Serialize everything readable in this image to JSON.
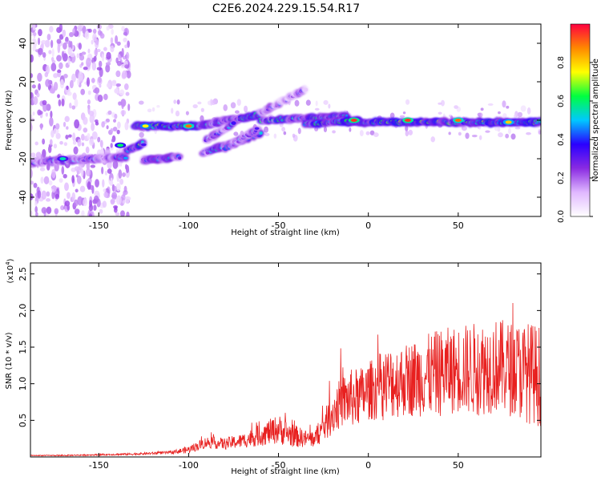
{
  "title": "C2E6.2024.229.15.54.R17",
  "chart_data": [
    {
      "type": "heatmap",
      "xlabel": "Height of straight line (km)",
      "ylabel": "Frequency (Hz)",
      "xlim": [
        -188,
        96
      ],
      "ylim": [
        -50,
        50
      ],
      "xticks": [
        -150,
        -100,
        -50,
        0,
        50
      ],
      "yticks": [
        -40,
        -20,
        0,
        20,
        40
      ],
      "colorbar": {
        "label": "Normalized spectral amplitude",
        "range": [
          0,
          1
        ],
        "ticks": [
          "0.0",
          "0.2",
          "0.4",
          "0.6",
          "0.8"
        ],
        "tick_values": [
          0,
          0.2,
          0.4,
          0.6,
          0.8
        ],
        "colors": [
          "#ffffff",
          "#e0b8ff",
          "#8a2be2",
          "#2a00ff",
          "#00c8ff",
          "#00ff40",
          "#ffff00",
          "#ff8800",
          "#ff0040"
        ]
      },
      "tracks": [
        {
          "x0": -188,
          "x1": -135,
          "y0": -22,
          "y1": -19,
          "amp": 0.35
        },
        {
          "x0": -135,
          "x1": -125,
          "y0": -16,
          "y1": -12,
          "amp": 0.5
        },
        {
          "x0": -125,
          "x1": -105,
          "y0": -21,
          "y1": -19,
          "amp": 0.4
        },
        {
          "x0": -130,
          "x1": -95,
          "y0": -3,
          "y1": -3,
          "amp": 0.55
        },
        {
          "x0": -95,
          "x1": -60,
          "y0": -3,
          "y1": 3,
          "amp": 0.45
        },
        {
          "x0": -92,
          "x1": -60,
          "y0": -17,
          "y1": -7,
          "amp": 0.4
        },
        {
          "x0": -90,
          "x1": -75,
          "y0": -10,
          "y1": -2,
          "amp": 0.35
        },
        {
          "x0": -80,
          "x1": -62,
          "y0": -15,
          "y1": -5,
          "amp": 0.35
        },
        {
          "x0": -60,
          "x1": -12,
          "y0": 0,
          "y1": 2,
          "amp": 0.45
        },
        {
          "x0": -60,
          "x1": -35,
          "y0": 4,
          "y1": 16,
          "amp": 0.25
        },
        {
          "x0": -35,
          "x1": -5,
          "y0": -2,
          "y1": 0,
          "amp": 0.5
        },
        {
          "x0": -12,
          "x1": 96,
          "y0": -1,
          "y1": -1,
          "amp": 0.55
        }
      ],
      "hotspots": [
        {
          "x": -100,
          "y": -3,
          "amp": 0.9
        },
        {
          "x": -124,
          "y": -3,
          "amp": 0.75
        },
        {
          "x": -8,
          "y": 0,
          "amp": 0.95
        },
        {
          "x": 22,
          "y": 0,
          "amp": 0.95
        },
        {
          "x": 50,
          "y": 0,
          "amp": 0.9
        },
        {
          "x": 78,
          "y": -1,
          "amp": 0.8
        },
        {
          "x": -170,
          "y": -20,
          "amp": 0.55
        },
        {
          "x": -138,
          "y": -13,
          "amp": 0.6
        }
      ]
    },
    {
      "type": "line",
      "xlabel": "Height of straight line (km)",
      "ylabel": "SNR (10 * v/v)",
      "y_multiplier": "(x10",
      "y_multiplier_exp": "4",
      "y_multiplier_close": ")",
      "xlim": [
        -188,
        96
      ],
      "ylim": [
        0,
        2.65
      ],
      "xticks": [
        -150,
        -100,
        -50,
        0,
        50
      ],
      "yticks": [
        "0.5",
        "1.0",
        "1.5",
        "2.0",
        "2.5"
      ],
      "ytick_values": [
        0.5,
        1.0,
        1.5,
        2.0,
        2.5
      ],
      "series": [
        {
          "color": "#e8201f",
          "x": [
            -188,
            -170,
            -150,
            -130,
            -110,
            -100,
            -90,
            -80,
            -70,
            -60,
            -50,
            -45,
            -40,
            -35,
            -30,
            -25,
            -20,
            -15,
            -10,
            -5,
            0,
            5,
            10,
            20,
            30,
            40,
            50,
            60,
            70,
            80,
            90,
            96
          ],
          "y": [
            0.02,
            0.02,
            0.03,
            0.04,
            0.06,
            0.1,
            0.2,
            0.18,
            0.22,
            0.3,
            0.38,
            0.32,
            0.28,
            0.25,
            0.25,
            0.4,
            0.6,
            0.75,
            0.8,
            0.82,
            0.9,
            0.95,
            1.0,
            1.05,
            1.1,
            1.15,
            1.2,
            1.2,
            1.25,
            1.2,
            1.15,
            1.1
          ],
          "noise": [
            0.005,
            0.008,
            0.01,
            0.015,
            0.02,
            0.05,
            0.08,
            0.08,
            0.1,
            0.15,
            0.2,
            0.18,
            0.15,
            0.12,
            0.12,
            0.2,
            0.3,
            0.35,
            0.4,
            0.4,
            0.4,
            0.45,
            0.5,
            0.5,
            0.55,
            0.6,
            0.6,
            0.65,
            0.65,
            0.65,
            0.7,
            0.7
          ]
        }
      ]
    }
  ]
}
